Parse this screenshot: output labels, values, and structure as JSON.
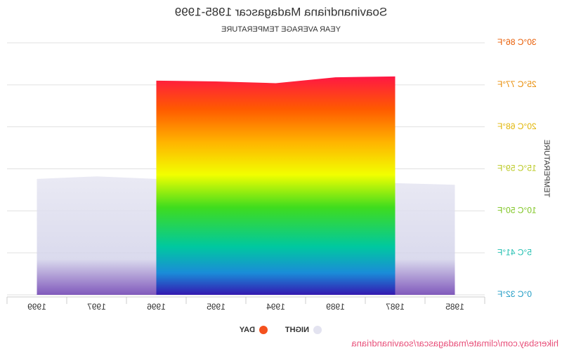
{
  "chart_data": {
    "type": "area",
    "title": "Soavinandriana Madagascar 1985-1999",
    "subtitle": "YEAR AVERAGE TEMPERATURE",
    "y_label": "TEMPERATURE",
    "categories": [
      "1985",
      "1987",
      "1989",
      "1994",
      "1995",
      "1996",
      "1997",
      "1999"
    ],
    "series": [
      {
        "name": "NIGHT",
        "color": "#e3e3f0",
        "values": [
          13.1,
          13.3,
          14.2,
          13.4,
          13.6,
          13.8,
          14.1,
          13.8
        ]
      },
      {
        "name": "DAY",
        "color": "#f4511e",
        "values": [
          null,
          26.0,
          25.9,
          25.2,
          25.4,
          25.5,
          null,
          null
        ]
      }
    ],
    "ylim": [
      0,
      30
    ],
    "yticks": [
      {
        "value": 0,
        "label": "0°C 32°F"
      },
      {
        "value": 5,
        "label": "5°C 41°F"
      },
      {
        "value": 10,
        "label": "10°C 50°F"
      },
      {
        "value": 15,
        "label": "15°C 59°F"
      },
      {
        "value": 20,
        "label": "20°C 68°F"
      },
      {
        "value": 25,
        "label": "25°C 77°F"
      },
      {
        "value": 30,
        "label": "30°C 86°F"
      }
    ],
    "ytick_colors": [
      "#1e9bc4",
      "#1fbfb0",
      "#7cc41e",
      "#b9c81e",
      "#e0b400",
      "#e88a00",
      "#e85a00"
    ],
    "grid": true,
    "mirrored": true,
    "credit": "hikersbay.com/climate/madagascar/soavinandriana"
  }
}
